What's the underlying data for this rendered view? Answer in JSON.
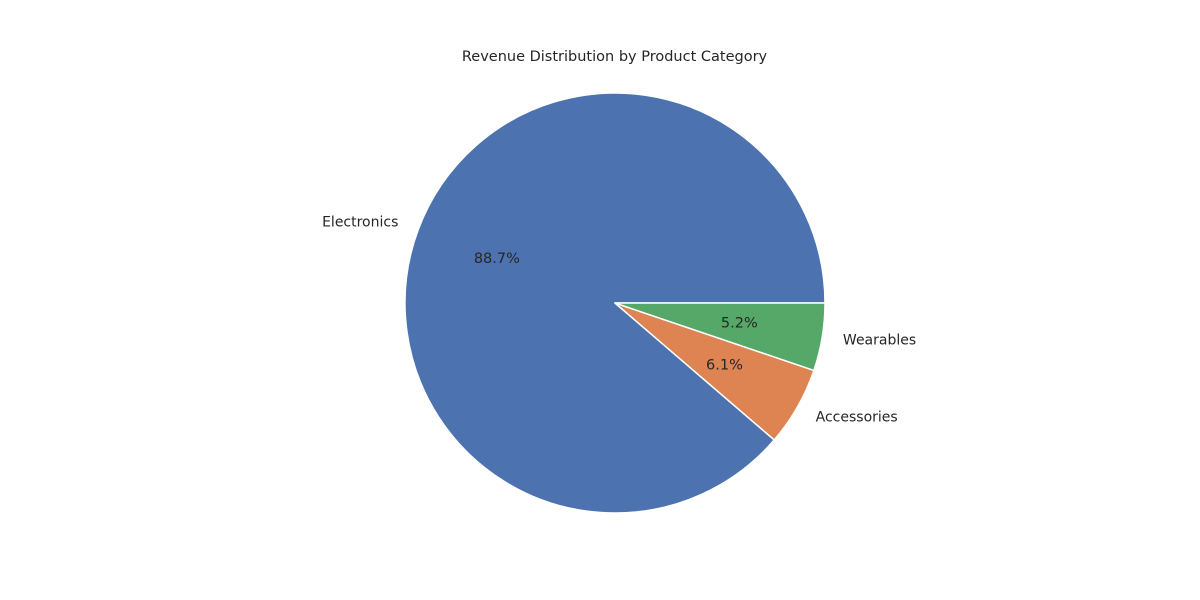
{
  "chart_data": {
    "type": "pie",
    "title": "Revenue Distribution by Product Category",
    "categories": [
      "Electronics",
      "Accessories",
      "Wearables"
    ],
    "values": [
      88.7,
      6.1,
      5.2
    ],
    "value_labels": [
      "88.7%",
      "6.1%",
      "5.2%"
    ],
    "colors": [
      "#4c72b0",
      "#dd8452",
      "#55a868"
    ],
    "start_angle_deg": 0,
    "direction": "counterclockwise",
    "legend": "none",
    "grid": false
  }
}
